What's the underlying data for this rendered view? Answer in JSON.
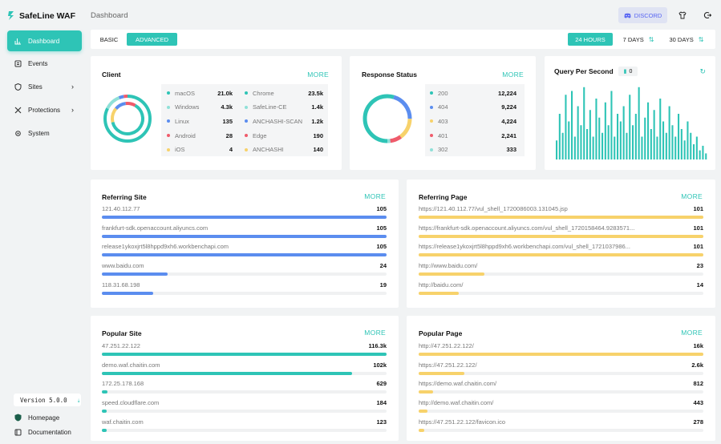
{
  "app": {
    "name": "SafeLine WAF",
    "version": "Version 5.0.0"
  },
  "colors": {
    "accent": "#2ec4b6",
    "blue": "#5b8def",
    "yellow": "#f7d26b",
    "red": "#ef5b6b",
    "pink": "#ec7fb0"
  },
  "sidebar": {
    "items": [
      {
        "label": "Dashboard",
        "icon": "dashboard-icon",
        "active": true
      },
      {
        "label": "Events",
        "icon": "events-icon"
      },
      {
        "label": "Sites",
        "icon": "shield-icon"
      },
      {
        "label": "Protections",
        "icon": "tools-icon"
      },
      {
        "label": "System",
        "icon": "gear-icon"
      }
    ],
    "footer": [
      {
        "label": "Homepage",
        "icon": "shield-home-icon"
      },
      {
        "label": "Documentation",
        "icon": "book-icon"
      }
    ]
  },
  "header": {
    "title": "Dashboard",
    "discord": "DISCORD"
  },
  "modes": {
    "basic": "BASIC",
    "advanced": "ADVANCED"
  },
  "ranges": {
    "h24": "24 HOURS",
    "d7": "7 DAYS",
    "d30": "30 DAYS"
  },
  "client": {
    "title": "Client",
    "more": "MORE",
    "os": [
      {
        "label": "macOS",
        "value": "21.0k",
        "color": "#2ec4b6"
      },
      {
        "label": "Windows",
        "value": "4.3k",
        "color": "#8fe0d8"
      },
      {
        "label": "Linux",
        "value": "135",
        "color": "#5b8def"
      },
      {
        "label": "Android",
        "value": "28",
        "color": "#ef5b6b"
      },
      {
        "label": "iOS",
        "value": "4",
        "color": "#f7d26b"
      }
    ],
    "browsers": [
      {
        "label": "Chrome",
        "value": "23.5k",
        "color": "#2ec4b6"
      },
      {
        "label": "SafeLine-CE",
        "value": "1.4k",
        "color": "#8fe0d8"
      },
      {
        "label": "ANCHASHI-SCAN",
        "value": "1.2k",
        "color": "#5b8def"
      },
      {
        "label": "Edge",
        "value": "190",
        "color": "#ef5b6b"
      },
      {
        "label": "ANCHASHI",
        "value": "140",
        "color": "#f7d26b"
      }
    ]
  },
  "response": {
    "title": "Response Status",
    "more": "MORE",
    "items": [
      {
        "label": "200",
        "value": "12,224",
        "n": 12224,
        "color": "#2ec4b6"
      },
      {
        "label": "404",
        "value": "9,224",
        "n": 9224,
        "color": "#5b8def"
      },
      {
        "label": "403",
        "value": "4,224",
        "n": 4224,
        "color": "#f7d26b"
      },
      {
        "label": "401",
        "value": "2,241",
        "n": 2241,
        "color": "#ef5b6b"
      },
      {
        "label": "302",
        "value": "333",
        "n": 333,
        "color": "#8fe0d8"
      }
    ]
  },
  "qps": {
    "title": "Query Per Second",
    "badge": "0",
    "bars": [
      0.25,
      0.6,
      0.35,
      0.85,
      0.5,
      0.9,
      0.3,
      0.7,
      0.45,
      0.95,
      0.4,
      0.65,
      0.3,
      0.8,
      0.55,
      0.35,
      0.75,
      0.45,
      0.9,
      0.3,
      0.6,
      0.5,
      0.7,
      0.35,
      0.85,
      0.45,
      0.6,
      0.95,
      0.3,
      0.55,
      0.75,
      0.4,
      0.65,
      0.3,
      0.8,
      0.5,
      0.35,
      0.7,
      0.45,
      0.3,
      0.6,
      0.4,
      0.25,
      0.5,
      0.35,
      0.2,
      0.3,
      0.12,
      0.18,
      0.08
    ]
  },
  "referring_site": {
    "title": "Referring Site",
    "more": "MORE",
    "rows": [
      {
        "label": "121.40.112.77",
        "value": "105",
        "pct": 1.0
      },
      {
        "label": "frankfurt-sdk.openaccount.aliyuncs.com",
        "value": "105",
        "pct": 1.0
      },
      {
        "label": "release1ykoxjrt5l8hppd9xh6.workbenchapi.com",
        "value": "105",
        "pct": 1.0
      },
      {
        "label": "www.baidu.com",
        "value": "24",
        "pct": 0.23
      },
      {
        "label": "118.31.68.198",
        "value": "19",
        "pct": 0.18
      }
    ]
  },
  "referring_page": {
    "title": "Referring Page",
    "more": "MORE",
    "rows": [
      {
        "label": "https://121.40.112.77/vul_shell_1720086003.131045.jsp",
        "value": "101",
        "pct": 1.0
      },
      {
        "label": "https://frankfurt-sdk.openaccount.aliyuncs.com/vul_shell_1720158464.9283571...",
        "value": "101",
        "pct": 1.0
      },
      {
        "label": "https://release1ykoxjrt5l8hppd9xh6.workbenchapi.com/vul_shell_1721037986...",
        "value": "101",
        "pct": 1.0
      },
      {
        "label": "http://www.baidu.com/",
        "value": "23",
        "pct": 0.23
      },
      {
        "label": "http://baidu.com/",
        "value": "14",
        "pct": 0.14
      }
    ]
  },
  "popular_site": {
    "title": "Popular Site",
    "more": "MORE",
    "rows": [
      {
        "label": "47.251.22.122",
        "value": "116.3k",
        "pct": 1.0
      },
      {
        "label": "demo.waf.chaitin.com",
        "value": "102k",
        "pct": 0.88
      },
      {
        "label": "172.25.178.168",
        "value": "629",
        "pct": 0.02
      },
      {
        "label": "speed.cloudflare.com",
        "value": "184",
        "pct": 0.015
      },
      {
        "label": "waf.chaitin.com",
        "value": "123",
        "pct": 0.012
      }
    ]
  },
  "popular_page": {
    "title": "Popular Page",
    "more": "MORE",
    "rows": [
      {
        "label": "http://47.251.22.122/",
        "value": "16k",
        "pct": 1.0
      },
      {
        "label": "https://47.251.22.122/",
        "value": "2.6k",
        "pct": 0.16
      },
      {
        "label": "https://demo.waf.chaitin.com/",
        "value": "812",
        "pct": 0.05
      },
      {
        "label": "http://demo.waf.chaitin.com/",
        "value": "443",
        "pct": 0.03
      },
      {
        "label": "https://47.251.22.122/favicon.ico",
        "value": "278",
        "pct": 0.02
      }
    ]
  }
}
